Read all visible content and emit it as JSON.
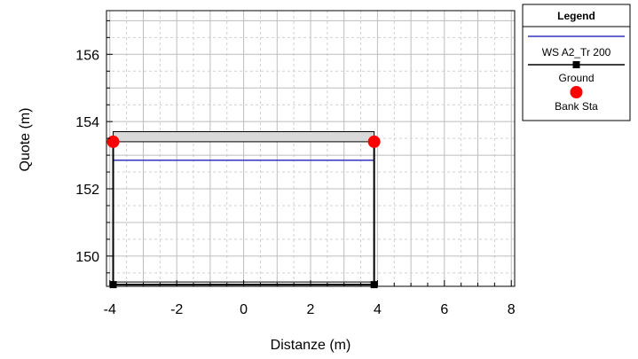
{
  "chart_data": {
    "type": "line",
    "xlabel": "Distanze (m)",
    "ylabel": "Quote (m)",
    "xlim": [
      -4.1,
      8.1
    ],
    "ylim": [
      149.1,
      157.3
    ],
    "x_ticks": [
      -4,
      -2,
      0,
      2,
      4,
      6,
      8
    ],
    "y_ticks": [
      150,
      152,
      154,
      156
    ],
    "grid": true,
    "legend_position": "right",
    "legend": {
      "title": "Legend",
      "entries": [
        "WS A2_Tr 200",
        "Ground",
        "Bank Sta"
      ]
    },
    "series": [
      {
        "name": "WS A2_Tr 200",
        "color": "#3333bb",
        "x": [
          -3.9,
          3.9
        ],
        "y": [
          152.85,
          152.85
        ]
      },
      {
        "name": "Ground",
        "color": "#000000",
        "x": [
          -3.9,
          -3.9,
          3.9,
          3.9
        ],
        "y": [
          153.4,
          149.15,
          149.15,
          153.4
        ]
      },
      {
        "name": "Bank Sta",
        "color": "#ff0000",
        "x": [
          -3.9,
          3.9
        ],
        "y": [
          153.4,
          153.4
        ]
      }
    ],
    "structure_deck": {
      "color": "#d9d9d9",
      "x": [
        -3.9,
        3.9
      ],
      "y": [
        153.4,
        153.7
      ]
    }
  }
}
